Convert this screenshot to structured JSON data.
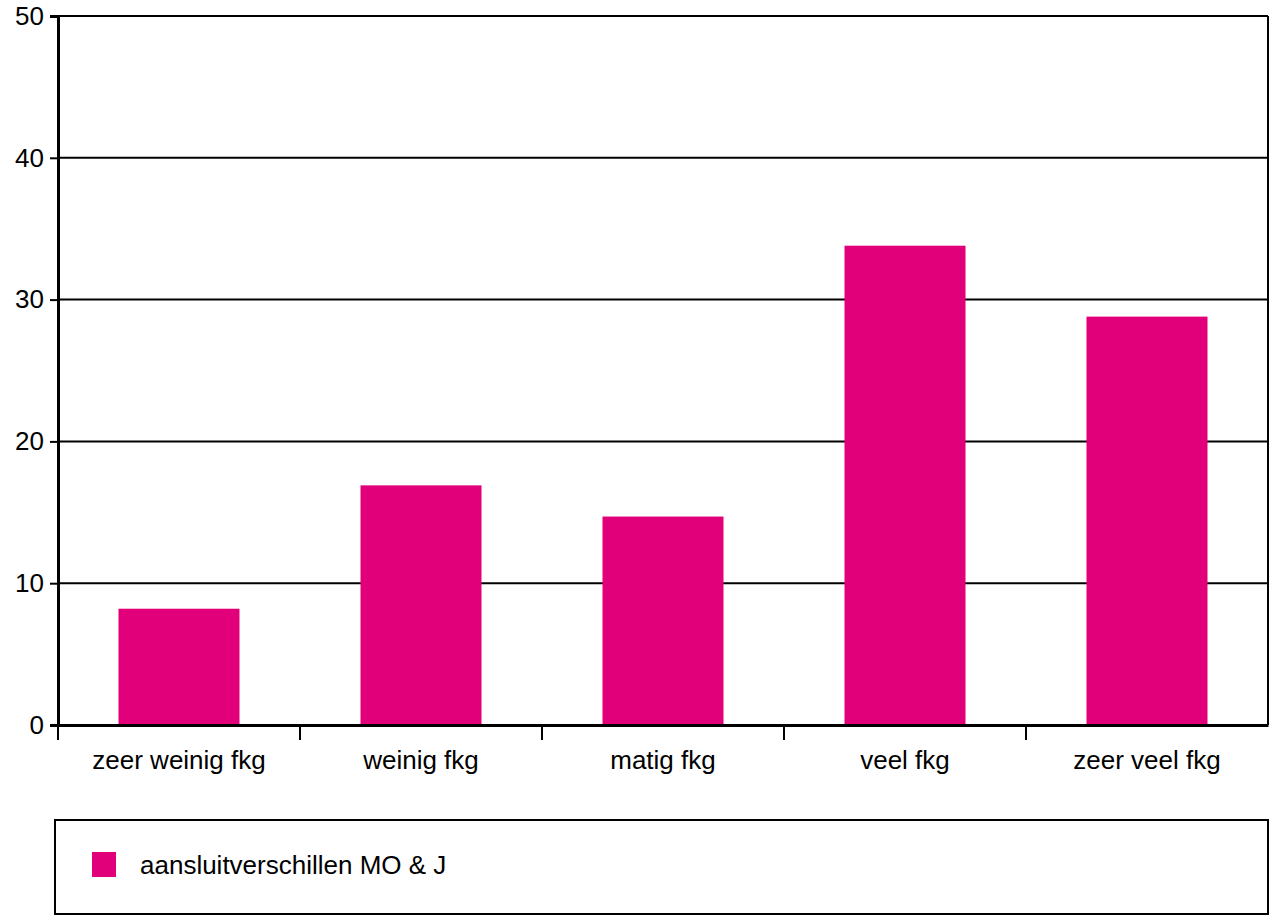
{
  "chart_data": {
    "type": "bar",
    "categories": [
      "zeer weinig fkg",
      "weinig fkg",
      "matig fkg",
      "veel fkg",
      "zeer veel fkg"
    ],
    "series": [
      {
        "name": "aansluitverschillen MO & J",
        "color": "#e2007a",
        "values": [
          8.2,
          16.9,
          14.7,
          33.8,
          28.8
        ]
      }
    ],
    "ylim": [
      0,
      50
    ],
    "yticks": [
      0,
      10,
      20,
      30,
      40,
      50
    ],
    "grid": true,
    "legend": "bottom"
  }
}
